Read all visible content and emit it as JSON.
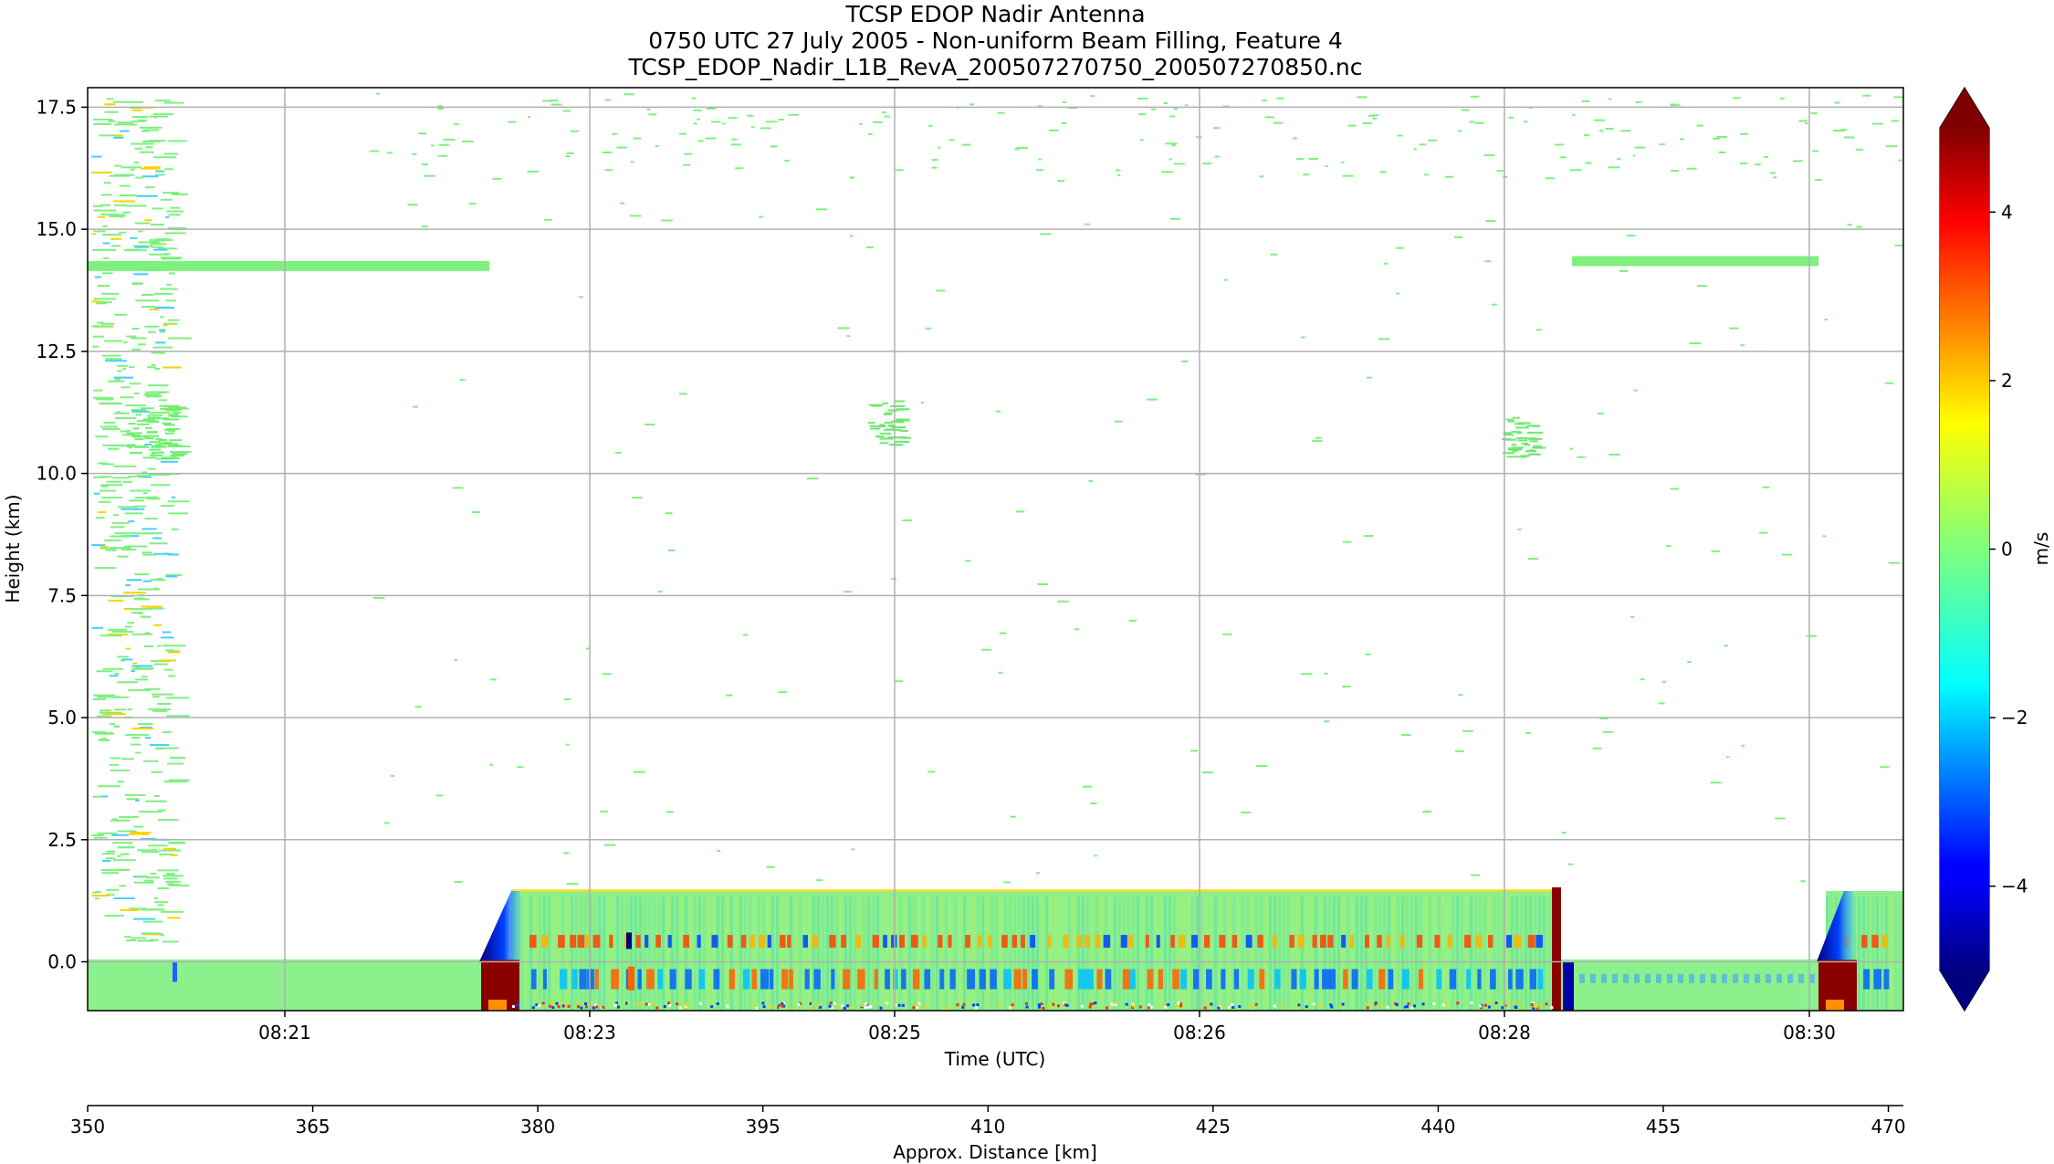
{
  "chart_data": {
    "type": "heatmap",
    "title_lines": [
      "TCSP EDOP Nadir Antenna",
      "0750 UTC 27 July 2005 - Non-uniform Beam Filling, Feature 4",
      "TCSP_EDOP_Nadir_L1B_RevA_200507270750_200507270850.nc"
    ],
    "xlabel": "Time (UTC)",
    "ylabel": "Height (km)",
    "x_ticks": [
      "08:21",
      "08:23",
      "08:25",
      "08:26",
      "08:28",
      "08:30"
    ],
    "y_ticks": [
      17.5,
      15.0,
      12.5,
      10.0,
      7.5,
      5.0,
      2.5,
      0.0
    ],
    "y_tick_labels": [
      "17.5",
      "15.0",
      "12.5",
      "10.0",
      "7.5",
      "5.0",
      "2.5",
      "0.0"
    ],
    "ylim": [
      -1.0,
      17.9
    ],
    "grid": true,
    "secondary_axis": {
      "label": "Approx. Distance [km]",
      "ticks": [
        350,
        365,
        380,
        395,
        410,
        425,
        440,
        455,
        470
      ],
      "range": [
        350,
        471
      ]
    },
    "colorbar": {
      "label": "m/s",
      "ticks": [
        4,
        2,
        0,
        -2,
        -4
      ],
      "tick_labels": [
        "4",
        "2",
        "0",
        "−2",
        "−4"
      ],
      "range": [
        -5,
        5
      ],
      "extend": "both",
      "colormap": "jet"
    },
    "features": {
      "cirrus_layer_height_km": 14.25,
      "surface_band_top_km": 1.45,
      "surface_km": 0.0
    }
  }
}
